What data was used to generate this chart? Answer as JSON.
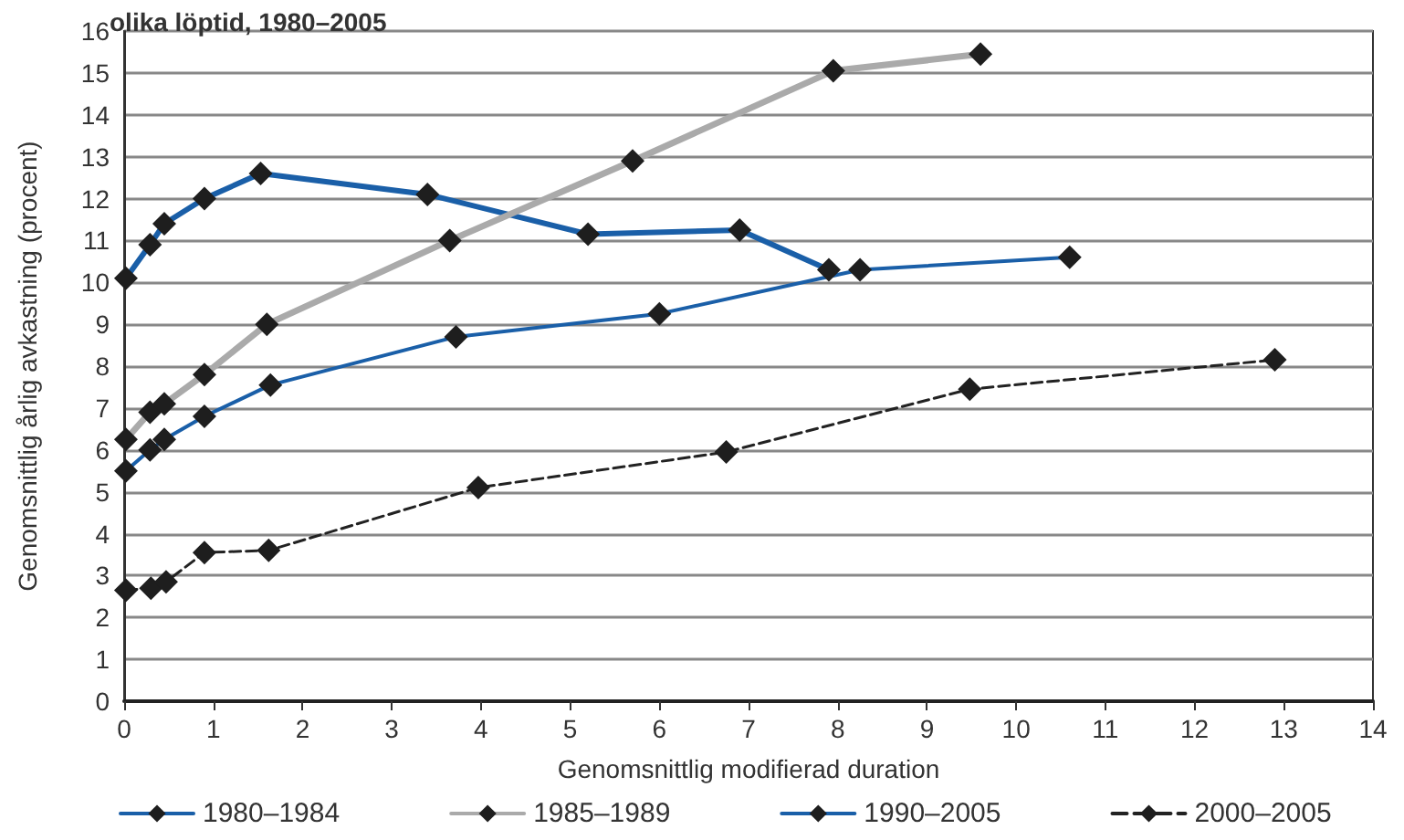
{
  "chart_data": {
    "type": "line",
    "title": "olika löptid, 1980–2005",
    "xlabel": "Genomsnittlig modifierad duration",
    "ylabel": "Genomsnittlig årlig avkastning (procent)",
    "xlim": [
      0,
      14
    ],
    "xticks": [
      0,
      1,
      2,
      3,
      4,
      5,
      6,
      7,
      8,
      9,
      10,
      11,
      12,
      13,
      14
    ],
    "ylim": [
      0,
      16
    ],
    "yticks": [
      0,
      1,
      2,
      3,
      4,
      5,
      6,
      7,
      8,
      9,
      10,
      11,
      12,
      13,
      14,
      15,
      16
    ],
    "grid": "y",
    "legend": "bottom",
    "marker": "diamond",
    "series": [
      {
        "name": "1980–1984",
        "color": "#1a5fa8",
        "line_style": "solid",
        "x": [
          0.02,
          0.29,
          0.45,
          0.9,
          1.53,
          3.4,
          5.2,
          6.9,
          7.9
        ],
        "values": [
          10.1,
          10.9,
          11.4,
          12.0,
          12.6,
          12.1,
          11.15,
          11.25,
          10.3
        ]
      },
      {
        "name": "1985–1989",
        "color": "#aaaaaa",
        "line_style": "solid",
        "x": [
          0.02,
          0.29,
          0.45,
          0.9,
          1.6,
          3.65,
          5.7,
          7.95,
          9.6
        ],
        "values": [
          6.25,
          6.9,
          7.1,
          7.8,
          9.0,
          11.0,
          12.9,
          15.05,
          15.45
        ]
      },
      {
        "name": "1990–2005",
        "color": "#1a5fa8",
        "line_style": "solid",
        "x": [
          0.02,
          0.29,
          0.45,
          0.9,
          1.64,
          3.72,
          6.0,
          8.25,
          10.6
        ],
        "values": [
          5.5,
          6.0,
          6.25,
          6.8,
          7.55,
          8.7,
          9.25,
          10.3,
          10.6
        ]
      },
      {
        "name": "2000–2005",
        "color": "#222222",
        "line_style": "dashed",
        "x": [
          0.02,
          0.3,
          0.47,
          0.9,
          1.62,
          3.97,
          6.75,
          9.48,
          12.9
        ],
        "values": [
          2.65,
          2.7,
          2.85,
          3.55,
          3.6,
          5.1,
          5.95,
          7.45,
          8.15
        ]
      }
    ]
  }
}
